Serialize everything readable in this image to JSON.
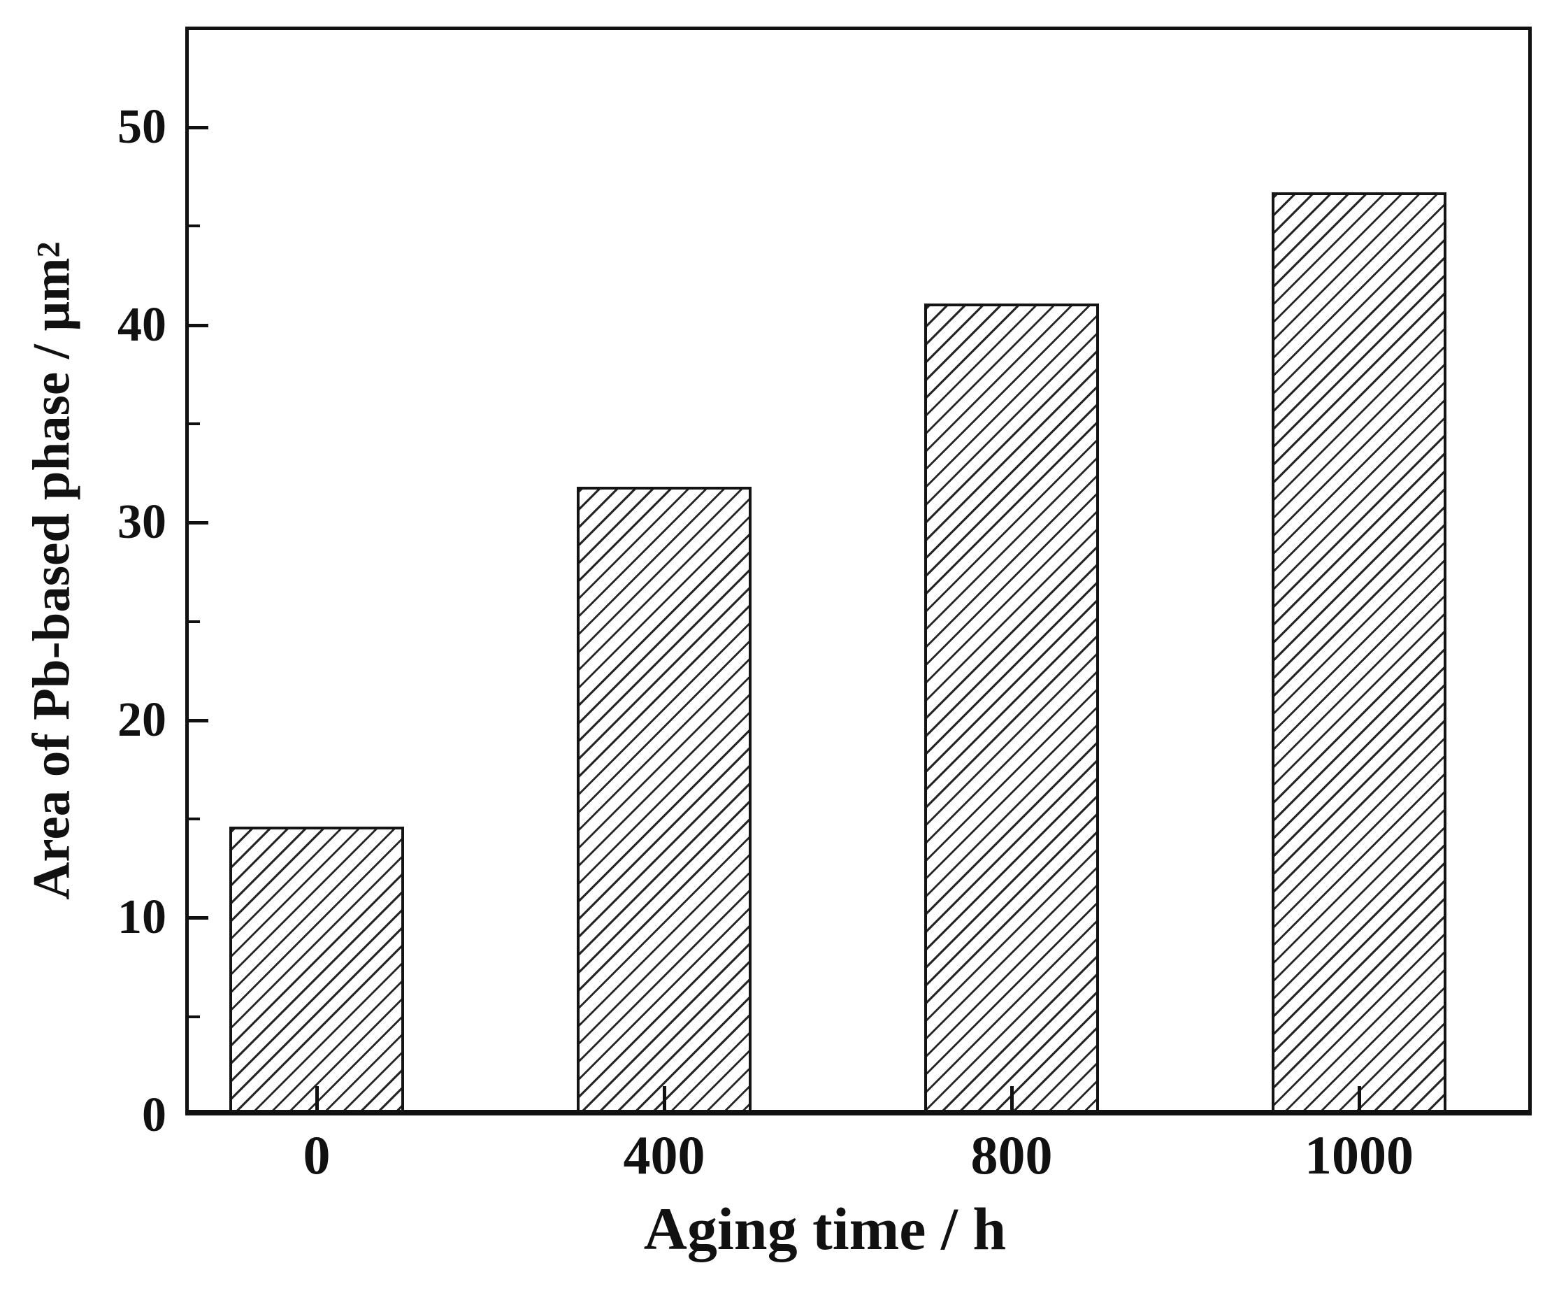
{
  "figure": {
    "background_color": "#ffffff",
    "ink_color": "#111111",
    "hatch_color": "#262626"
  },
  "chart_data": {
    "type": "bar",
    "title": "",
    "categories": [
      "0",
      "400",
      "800",
      "1000"
    ],
    "values": [
      14.6,
      31.8,
      41.1,
      46.7
    ],
    "xlabel": "Aging time / h",
    "ylabel": "Area of Pb-based phase / μm",
    "ylabel_superscript": "2",
    "ylim": [
      0,
      55.1
    ],
    "y_ticks": [
      0,
      10,
      20,
      30,
      40,
      50
    ],
    "y_minor_ticks": [
      5,
      15,
      25,
      35,
      45
    ],
    "grid": false,
    "legend": null,
    "bar_style": {
      "fill": "diagonal-forward-hatch",
      "edge_color": "#141414"
    }
  }
}
